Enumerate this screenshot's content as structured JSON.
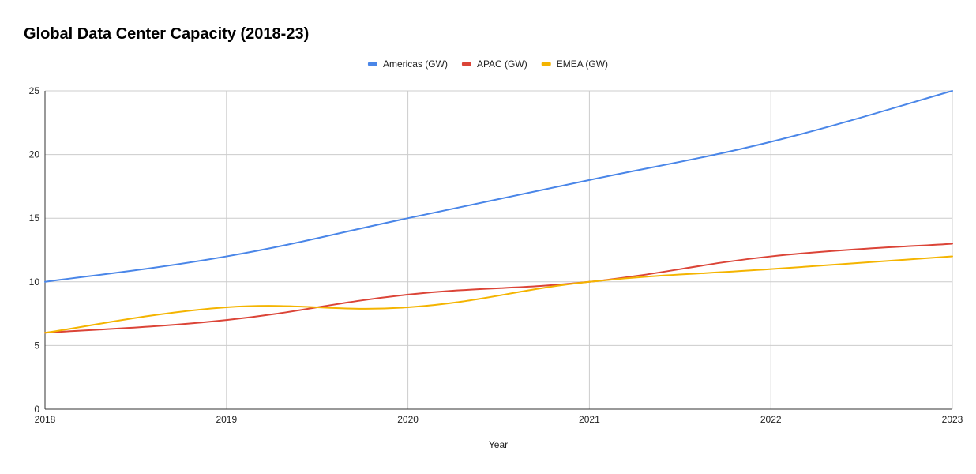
{
  "chart_data": {
    "type": "line",
    "title": "Global Data Center Capacity (2018-23)",
    "xlabel": "Year",
    "ylabel": "",
    "categories": [
      "2018",
      "2019",
      "2020",
      "2021",
      "2022",
      "2023"
    ],
    "ylim": [
      0,
      25
    ],
    "yticks": [
      0,
      5,
      10,
      15,
      20,
      25
    ],
    "grid": true,
    "legend_position": "top",
    "smooth": true,
    "series": [
      {
        "name": "Americas (GW)",
        "color": "#4a86e8",
        "values": [
          10,
          12,
          15,
          18,
          21,
          25
        ]
      },
      {
        "name": "APAC (GW)",
        "color": "#db4437",
        "values": [
          6,
          7,
          9,
          10,
          12,
          13
        ]
      },
      {
        "name": "EMEA (GW)",
        "color": "#f4b400",
        "values": [
          6,
          8,
          8,
          10,
          11,
          12
        ]
      }
    ]
  }
}
